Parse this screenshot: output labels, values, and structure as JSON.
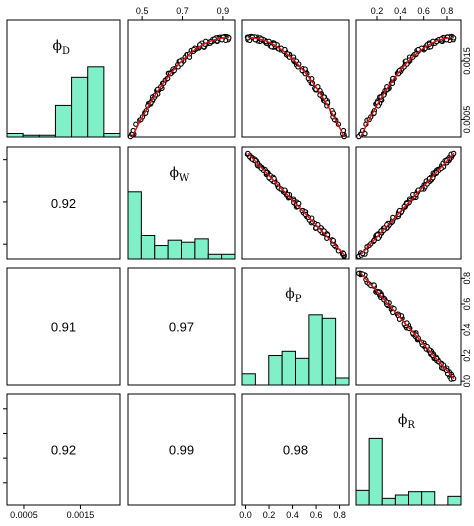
{
  "chart_data": {
    "type": "scatter",
    "title": "",
    "bar_color": "#7ff0c8",
    "fit_color": "#e01010",
    "variables": [
      {
        "key": "D",
        "label": "ϕ",
        "sub": "D",
        "ticks": [
          "0.0005",
          "0.0015"
        ],
        "tick_values": [
          0.0005,
          0.0015
        ],
        "range": [
          0.0002,
          0.0022
        ],
        "hist": [
          0.05,
          0.025,
          0.025,
          0.45,
          0.85,
          1.0,
          0.05
        ]
      },
      {
        "key": "W",
        "label": "ϕ",
        "sub": "W",
        "ticks": [
          "0.5",
          "0.7",
          "0.9"
        ],
        "tick_values": [
          0.5,
          0.7,
          0.9
        ],
        "range": [
          0.43,
          0.96
        ],
        "hist": [
          1.0,
          0.35,
          0.2,
          0.28,
          0.25,
          0.3,
          0.07,
          0.07
        ]
      },
      {
        "key": "P",
        "label": "ϕ",
        "sub": "P",
        "ticks": [
          "0.0",
          "0.2",
          "0.4",
          "0.6",
          "0.8"
        ],
        "tick_values": [
          0.0,
          0.2,
          0.4,
          0.6,
          0.8
        ],
        "range": [
          -0.03,
          0.88
        ],
        "hist": [
          0.16,
          0.0,
          0.42,
          0.48,
          0.38,
          1.0,
          0.95,
          0.1
        ]
      },
      {
        "key": "R",
        "label": "ϕ",
        "sub": "R",
        "ticks": [
          "0.2",
          "0.4",
          "0.6",
          "0.8"
        ],
        "tick_values": [
          0.2,
          0.4,
          0.6,
          0.8
        ],
        "range": [
          0.02,
          0.92
        ],
        "hist": [
          0.22,
          1.0,
          0.1,
          0.15,
          0.2,
          0.2,
          0.0,
          0.13
        ]
      }
    ],
    "correlations": [
      {
        "row": 1,
        "col": 0,
        "value": "0.92"
      },
      {
        "row": 2,
        "col": 0,
        "value": "0.91"
      },
      {
        "row": 2,
        "col": 1,
        "value": "0.97"
      },
      {
        "row": 3,
        "col": 0,
        "value": "0.92"
      },
      {
        "row": 3,
        "col": 1,
        "value": "0.99"
      },
      {
        "row": 3,
        "col": 2,
        "value": "0.98"
      }
    ]
  }
}
